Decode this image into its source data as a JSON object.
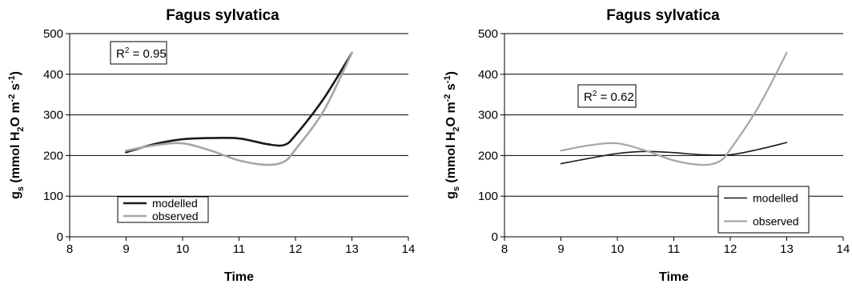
{
  "chart_data": [
    {
      "type": "line",
      "title": "Fagus sylvatica",
      "xlabel": "Time",
      "ylabel": "gs (mmol H2O m-2 s-1)",
      "ylabel_parts": {
        "main": "g",
        "sub": "s",
        "mid": " (mmol H",
        "sub2": "2",
        "mid2": "O m",
        "sup1": "-2",
        "mid3": " s",
        "sup2": "-1",
        "end": ")"
      },
      "xlim": [
        8,
        14
      ],
      "ylim": [
        0,
        500
      ],
      "xticks": [
        8,
        9,
        10,
        11,
        12,
        13,
        14
      ],
      "yticks": [
        0,
        100,
        200,
        300,
        400,
        500
      ],
      "grid": true,
      "legend_position": "bottom-left",
      "annotation": {
        "prefix": "R",
        "sup": "2",
        "suffix": " = 0.95"
      },
      "series": [
        {
          "name": "modelled",
          "color": "#1a1a1a",
          "width": 2.6,
          "x": [
            9,
            9.5,
            10,
            10.5,
            11,
            11.5,
            11.8,
            12,
            12.5,
            13
          ],
          "y": [
            208,
            228,
            240,
            243,
            242,
            228,
            226,
            250,
            340,
            453
          ]
        },
        {
          "name": "observed",
          "color": "#a6a6a6",
          "width": 2.6,
          "x": [
            9,
            9.5,
            10,
            10.5,
            11,
            11.5,
            11.8,
            12,
            12.5,
            13
          ],
          "y": [
            212,
            225,
            230,
            212,
            188,
            177,
            185,
            215,
            310,
            453
          ]
        }
      ]
    },
    {
      "type": "line",
      "title": "Fagus sylvatica",
      "xlabel": "Time",
      "ylabel": "gs (mmol H2O m-2 s-1)",
      "ylabel_parts": {
        "main": "g",
        "sub": "s",
        "mid": " (mmol H",
        "sub2": "2",
        "mid2": "O m",
        "sup1": "-2",
        "mid3": " s",
        "sup2": "-1",
        "end": ")"
      },
      "xlim": [
        8,
        14
      ],
      "ylim": [
        0,
        500
      ],
      "xticks": [
        8,
        9,
        10,
        11,
        12,
        13,
        14
      ],
      "yticks": [
        0,
        100,
        200,
        300,
        400,
        500
      ],
      "grid": true,
      "legend_position": "bottom-right",
      "annotation": {
        "prefix": "R",
        "sup": "2",
        "suffix": " = 0.62"
      },
      "series": [
        {
          "name": "modelled",
          "color": "#1a1a1a",
          "width": 1.6,
          "x": [
            9,
            9.5,
            10,
            10.5,
            11,
            11.5,
            12,
            12.5,
            13
          ],
          "y": [
            180,
            193,
            205,
            210,
            207,
            202,
            202,
            215,
            232
          ]
        },
        {
          "name": "observed",
          "color": "#a6a6a6",
          "width": 2.2,
          "x": [
            9,
            9.5,
            10,
            10.5,
            11,
            11.5,
            11.8,
            12,
            12.5,
            13
          ],
          "y": [
            212,
            225,
            230,
            212,
            188,
            177,
            185,
            215,
            320,
            453
          ]
        }
      ]
    }
  ]
}
